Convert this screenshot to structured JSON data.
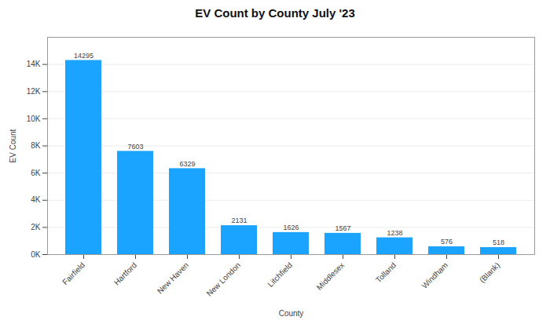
{
  "chart_data": {
    "type": "bar",
    "title": "EV Count by County July '23",
    "xlabel": "County",
    "ylabel": "EV Count",
    "categories": [
      "Fairfield",
      "Hartford",
      "New Haven",
      "New London",
      "Litchfield",
      "Middlesex",
      "Tolland",
      "Windham",
      "(Blank)"
    ],
    "values": [
      14295,
      7603,
      6329,
      2131,
      1626,
      1567,
      1238,
      576,
      518
    ],
    "color": "#1aa3ff",
    "ylim": [
      0,
      16000
    ],
    "yticks": [
      {
        "value": 0,
        "label": "0K"
      },
      {
        "value": 2000,
        "label": "2K"
      },
      {
        "value": 4000,
        "label": "4K"
      },
      {
        "value": 6000,
        "label": "6K"
      },
      {
        "value": 8000,
        "label": "8K"
      },
      {
        "value": 10000,
        "label": "10K"
      },
      {
        "value": 12000,
        "label": "12K"
      },
      {
        "value": 14000,
        "label": "14K"
      }
    ],
    "grid": true,
    "data_labels": true
  }
}
